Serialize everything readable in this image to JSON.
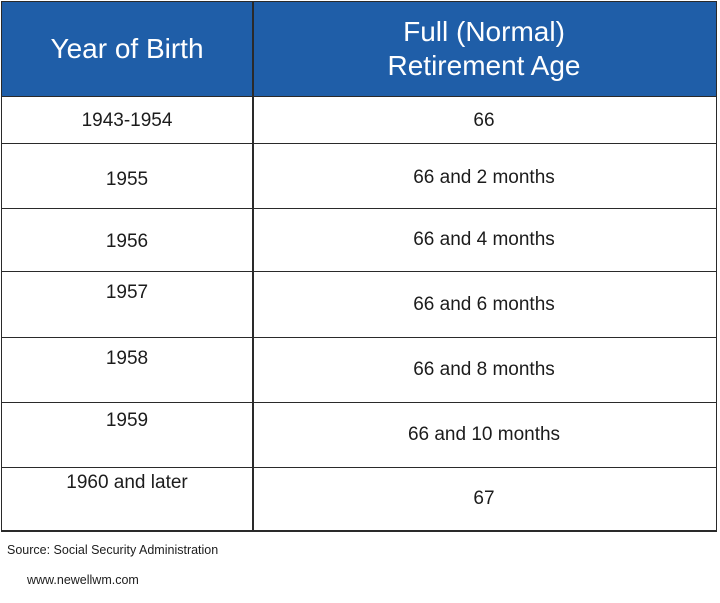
{
  "table": {
    "headers": {
      "year_of_birth": "Year of Birth",
      "retirement_age_line1": "Full (Normal)",
      "retirement_age_line2": "Retirement Age"
    },
    "rows": [
      {
        "year": "1943-1954",
        "age": "66"
      },
      {
        "year": "1955",
        "age": "66 and 2 months"
      },
      {
        "year": "1956",
        "age": "66 and 4 months"
      },
      {
        "year": "1957",
        "age": "66 and 6 months"
      },
      {
        "year": "1958",
        "age": "66 and 8 months"
      },
      {
        "year": "1959",
        "age": "66 and 10 months"
      },
      {
        "year": "1960 and later",
        "age": "67"
      }
    ]
  },
  "footer": {
    "source": "Source: Social Security Administration",
    "website": "www.newellwm.com"
  },
  "colors": {
    "header_background": "#1f5ea8",
    "header_text": "#ffffff",
    "border": "#2a2a2a"
  }
}
